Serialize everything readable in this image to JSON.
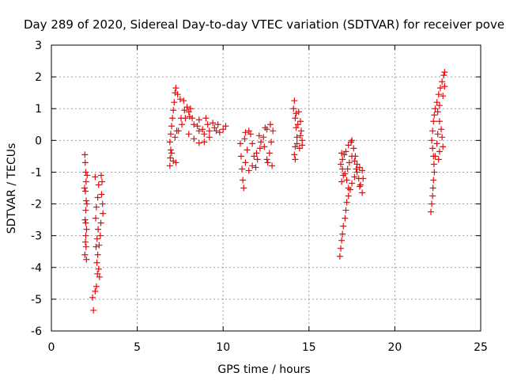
{
  "colors": {
    "series": "#ff0000",
    "grid": "#a0a0a0",
    "axis": "#000000",
    "background": "#ffffff"
  },
  "chart_data": {
    "type": "scatter",
    "title": "Day 289 of 2020, Sidereal Day-to-day VTEC variation (SDTVAR) for receiver pove",
    "xlabel": "GPS time / hours",
    "ylabel": "SDTVAR / TECUs",
    "xlim": [
      0,
      25
    ],
    "ylim": [
      -6,
      3
    ],
    "xticks": [
      0,
      5,
      10,
      15,
      20,
      25
    ],
    "yticks": [
      -6,
      -5,
      -4,
      -3,
      -2,
      -1,
      0,
      1,
      2,
      3
    ],
    "grid": true,
    "marker": "+",
    "series": [
      {
        "name": "SDTVAR",
        "points": [
          [
            1.95,
            -0.45
          ],
          [
            1.97,
            -0.7
          ],
          [
            2.0,
            -1.0
          ],
          [
            2.02,
            -1.3
          ],
          [
            1.98,
            -1.6
          ],
          [
            2.03,
            -1.9
          ],
          [
            2.0,
            -2.2
          ],
          [
            1.96,
            -2.5
          ],
          [
            2.05,
            -2.8
          ],
          [
            2.0,
            -3.0
          ],
          [
            1.98,
            -3.2
          ],
          [
            2.02,
            -3.35
          ],
          [
            1.95,
            -3.6
          ],
          [
            2.04,
            -3.75
          ],
          [
            2.08,
            -1.1
          ],
          [
            1.93,
            -1.5
          ],
          [
            2.07,
            -2.0
          ],
          [
            2.0,
            -2.6
          ],
          [
            2.55,
            -1.15
          ],
          [
            2.75,
            -1.4
          ],
          [
            2.7,
            -1.8
          ],
          [
            2.62,
            -2.1
          ],
          [
            2.58,
            -2.45
          ],
          [
            2.72,
            -2.8
          ],
          [
            2.66,
            -3.1
          ],
          [
            2.6,
            -3.35
          ],
          [
            2.7,
            -3.6
          ],
          [
            2.65,
            -3.85
          ],
          [
            2.75,
            -4.05
          ],
          [
            2.68,
            -4.2
          ],
          [
            2.8,
            -4.3
          ],
          [
            2.62,
            -4.6
          ],
          [
            2.55,
            -4.75
          ],
          [
            2.4,
            -4.95
          ],
          [
            2.45,
            -5.35
          ],
          [
            2.9,
            -1.1
          ],
          [
            2.95,
            -1.3
          ],
          [
            2.92,
            -1.7
          ],
          [
            2.98,
            -2.0
          ],
          [
            3.0,
            -2.3
          ],
          [
            2.88,
            -2.6
          ],
          [
            2.85,
            -3.0
          ],
          [
            2.78,
            -3.3
          ],
          [
            6.9,
            -0.8
          ],
          [
            6.92,
            -0.55
          ],
          [
            6.95,
            -0.3
          ],
          [
            6.9,
            -0.05
          ],
          [
            6.95,
            0.2
          ],
          [
            7.0,
            0.45
          ],
          [
            7.05,
            0.7
          ],
          [
            7.1,
            0.95
          ],
          [
            7.15,
            1.2
          ],
          [
            7.2,
            1.5
          ],
          [
            7.25,
            1.65
          ],
          [
            7.35,
            1.45
          ],
          [
            7.5,
            1.3
          ],
          [
            7.7,
            1.25
          ],
          [
            7.9,
            1.05
          ],
          [
            8.05,
            0.75
          ],
          [
            8.3,
            0.5
          ],
          [
            8.6,
            0.3
          ],
          [
            8.9,
            0.2
          ],
          [
            9.2,
            0.3
          ],
          [
            9.5,
            0.4
          ],
          [
            9.8,
            0.25
          ],
          [
            10.0,
            0.35
          ],
          [
            10.15,
            0.45
          ],
          [
            7.2,
            0.1
          ],
          [
            7.4,
            0.3
          ],
          [
            7.6,
            0.5
          ],
          [
            7.8,
            0.7
          ],
          [
            8.0,
            0.9
          ],
          [
            8.2,
            0.7
          ],
          [
            8.5,
            0.45
          ],
          [
            8.8,
            0.35
          ],
          [
            9.1,
            0.5
          ],
          [
            9.4,
            0.55
          ],
          [
            9.7,
            0.5
          ],
          [
            8.0,
            0.2
          ],
          [
            8.3,
            0.05
          ],
          [
            8.6,
            -0.08
          ],
          [
            8.9,
            -0.05
          ],
          [
            9.2,
            0.1
          ],
          [
            9.6,
            0.3
          ],
          [
            7.0,
            -0.4
          ],
          [
            7.1,
            -0.65
          ],
          [
            7.25,
            -0.7
          ],
          [
            7.3,
            0.3
          ],
          [
            7.55,
            0.7
          ],
          [
            7.75,
            0.95
          ],
          [
            8.1,
            1.0
          ],
          [
            8.6,
            0.65
          ],
          [
            9.0,
            0.7
          ],
          [
            11.0,
            -0.1
          ],
          [
            11.05,
            -0.5
          ],
          [
            11.1,
            -0.9
          ],
          [
            11.15,
            -1.25
          ],
          [
            11.2,
            -1.5
          ],
          [
            11.3,
            0.25
          ],
          [
            11.5,
            0.3
          ],
          [
            11.7,
            -0.1
          ],
          [
            11.8,
            -0.5
          ],
          [
            11.9,
            -0.85
          ],
          [
            12.0,
            -0.6
          ],
          [
            12.15,
            -0.25
          ],
          [
            12.35,
            0.1
          ],
          [
            12.55,
            0.35
          ],
          [
            12.75,
            0.5
          ],
          [
            12.9,
            0.3
          ],
          [
            12.8,
            -0.05
          ],
          [
            12.7,
            -0.4
          ],
          [
            12.6,
            -0.7
          ],
          [
            12.85,
            -0.8
          ],
          [
            11.3,
            -0.7
          ],
          [
            11.5,
            -0.95
          ],
          [
            11.7,
            -0.8
          ],
          [
            11.95,
            -0.4
          ],
          [
            12.2,
            -0.05
          ],
          [
            12.4,
            -0.2
          ],
          [
            12.55,
            -0.6
          ],
          [
            11.4,
            -0.3
          ],
          [
            12.1,
            0.15
          ],
          [
            12.45,
            0.4
          ],
          [
            11.25,
            0.05
          ],
          [
            11.6,
            0.2
          ],
          [
            14.15,
            1.25
          ],
          [
            14.1,
            1.0
          ],
          [
            14.2,
            0.7
          ],
          [
            14.25,
            0.4
          ],
          [
            14.3,
            0.1
          ],
          [
            14.2,
            -0.2
          ],
          [
            14.15,
            -0.45
          ],
          [
            14.2,
            -0.6
          ],
          [
            14.4,
            0.9
          ],
          [
            14.5,
            0.6
          ],
          [
            14.55,
            0.3
          ],
          [
            14.6,
            0.0
          ],
          [
            14.45,
            -0.25
          ],
          [
            14.3,
            -0.1
          ],
          [
            14.35,
            0.5
          ],
          [
            14.5,
            0.15
          ],
          [
            14.6,
            -0.15
          ],
          [
            14.25,
            0.85
          ],
          [
            16.8,
            -3.65
          ],
          [
            16.85,
            -3.4
          ],
          [
            16.9,
            -3.15
          ],
          [
            16.95,
            -2.95
          ],
          [
            17.0,
            -2.7
          ],
          [
            17.1,
            -2.45
          ],
          [
            17.15,
            -2.2
          ],
          [
            17.2,
            -1.95
          ],
          [
            17.3,
            -1.75
          ],
          [
            17.4,
            -1.55
          ],
          [
            17.5,
            -1.35
          ],
          [
            17.65,
            -1.15
          ],
          [
            17.8,
            -1.0
          ],
          [
            17.95,
            -0.85
          ],
          [
            18.1,
            -0.95
          ],
          [
            18.15,
            -1.2
          ],
          [
            18.0,
            -1.4
          ],
          [
            17.9,
            -1.2
          ],
          [
            17.8,
            -0.75
          ],
          [
            17.7,
            -0.5
          ],
          [
            17.6,
            -0.25
          ],
          [
            17.45,
            -0.05
          ],
          [
            17.3,
            -0.15
          ],
          [
            17.15,
            -0.35
          ],
          [
            17.05,
            -0.45
          ],
          [
            16.95,
            -0.6
          ],
          [
            16.85,
            -0.75
          ],
          [
            16.95,
            -0.9
          ],
          [
            17.1,
            -1.05
          ],
          [
            17.25,
            -0.9
          ],
          [
            17.35,
            -0.7
          ],
          [
            17.5,
            -0.5
          ],
          [
            17.65,
            -0.65
          ],
          [
            17.75,
            -0.9
          ],
          [
            17.95,
            -1.45
          ],
          [
            18.1,
            -1.65
          ],
          [
            17.3,
            -1.5
          ],
          [
            17.2,
            -1.25
          ],
          [
            17.0,
            -1.1
          ],
          [
            16.9,
            -1.3
          ],
          [
            16.9,
            -0.4
          ],
          [
            17.5,
            0.0
          ],
          [
            22.1,
            -2.25
          ],
          [
            22.15,
            -2.0
          ],
          [
            22.2,
            -1.75
          ],
          [
            22.22,
            -1.5
          ],
          [
            22.25,
            -1.25
          ],
          [
            22.3,
            -1.0
          ],
          [
            22.28,
            -0.75
          ],
          [
            22.25,
            -0.5
          ],
          [
            22.2,
            -0.25
          ],
          [
            22.15,
            0.0
          ],
          [
            22.2,
            0.3
          ],
          [
            22.25,
            0.6
          ],
          [
            22.3,
            0.8
          ],
          [
            22.35,
            1.0
          ],
          [
            22.45,
            1.2
          ],
          [
            22.55,
            1.45
          ],
          [
            22.65,
            1.65
          ],
          [
            22.75,
            1.85
          ],
          [
            22.85,
            2.05
          ],
          [
            22.9,
            2.15
          ],
          [
            22.5,
            0.9
          ],
          [
            22.6,
            0.6
          ],
          [
            22.7,
            0.35
          ],
          [
            22.75,
            0.1
          ],
          [
            22.8,
            -0.2
          ],
          [
            22.6,
            -0.35
          ],
          [
            22.55,
            -0.6
          ],
          [
            22.5,
            0.2
          ],
          [
            22.45,
            -0.1
          ],
          [
            22.35,
            -0.5
          ],
          [
            22.6,
            1.1
          ],
          [
            22.8,
            1.4
          ],
          [
            22.9,
            1.7
          ]
        ]
      }
    ]
  }
}
